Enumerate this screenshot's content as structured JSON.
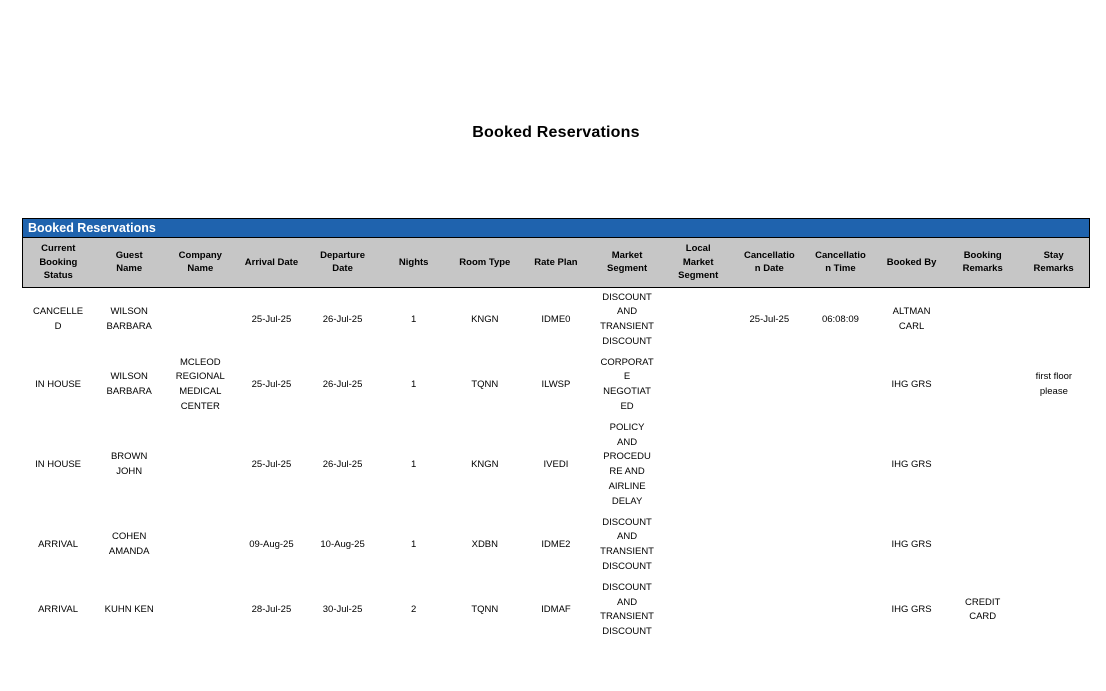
{
  "page": {
    "title": "Booked Reservations"
  },
  "report": {
    "section_title": "Booked Reservations",
    "columns": [
      "Current\nBooking\nStatus",
      "Guest\nName",
      "Company\nName",
      "Arrival Date",
      "Departure\nDate",
      "Nights",
      "Room Type",
      "Rate Plan",
      "Market\nSegment",
      "Local\nMarket\nSegment",
      "Cancellatio\nn Date",
      "Cancellatio\nn Time",
      "Booked By",
      "Booking\nRemarks",
      "Stay\nRemarks"
    ],
    "rows": [
      [
        "CANCELLE\nD",
        "WILSON\nBARBARA",
        "",
        "25-Jul-25",
        "26-Jul-25",
        "1",
        "KNGN",
        "IDME0",
        "DISCOUNT\nAND\nTRANSIENT\nDISCOUNT",
        "",
        "25-Jul-25",
        "06:08:09",
        "ALTMAN\nCARL",
        "",
        ""
      ],
      [
        "IN HOUSE",
        "WILSON\nBARBARA",
        "MCLEOD\nREGIONAL\nMEDICAL\nCENTER",
        "25-Jul-25",
        "26-Jul-25",
        "1",
        "TQNN",
        "ILWSP",
        "CORPORAT\nE\nNEGOTIAT\nED",
        "",
        "",
        "",
        "IHG GRS",
        "",
        "first floor\nplease"
      ],
      [
        "IN HOUSE",
        "BROWN\nJOHN",
        "",
        "25-Jul-25",
        "26-Jul-25",
        "1",
        "KNGN",
        "IVEDI",
        "POLICY\nAND\nPROCEDU\nRE AND\nAIRLINE\nDELAY",
        "",
        "",
        "",
        "IHG GRS",
        "",
        ""
      ],
      [
        "ARRIVAL",
        "COHEN\nAMANDA",
        "",
        "09-Aug-25",
        "10-Aug-25",
        "1",
        "XDBN",
        "IDME2",
        "DISCOUNT\nAND\nTRANSIENT\nDISCOUNT",
        "",
        "",
        "",
        "IHG GRS",
        "",
        ""
      ],
      [
        "ARRIVAL",
        "KUHN KEN",
        "",
        "28-Jul-25",
        "30-Jul-25",
        "2",
        "TQNN",
        "IDMAF",
        "DISCOUNT\nAND\nTRANSIENT\nDISCOUNT",
        "",
        "",
        "",
        "IHG GRS",
        "CREDIT\nCARD",
        ""
      ]
    ]
  },
  "colors": {
    "section_bar_blue": "#1F63AE",
    "header_gray": "#C6C6C6",
    "border_black": "#000000",
    "text_black": "#000000",
    "bar_text_white": "#FFFFFF"
  }
}
